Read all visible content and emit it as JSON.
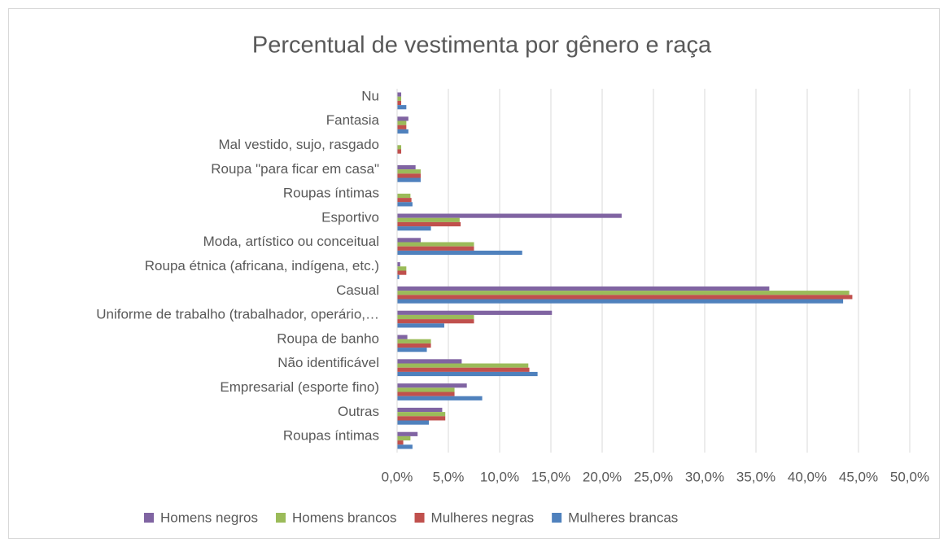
{
  "chart_data": {
    "type": "bar",
    "orientation": "horizontal",
    "title": "Percentual de vestimenta por gênero e raça",
    "categories": [
      "Nu",
      "Fantasia",
      "Mal vestido, sujo, rasgado",
      "Roupa \"para ficar em casa\"",
      "Roupas íntimas",
      "Esportivo",
      "Moda, artístico ou conceitual",
      "Roupa étnica (africana, indígena, etc.)",
      "Casual",
      "Uniforme de trabalho (trabalhador, operário,…",
      "Roupa de banho",
      "Não identificável",
      "Empresarial (esporte fino)",
      "Outras",
      "Roupas íntimas"
    ],
    "series": [
      {
        "name": "Homens negros",
        "color": "#8064a2",
        "values": [
          0.4,
          1.1,
          0,
          1.8,
          0,
          21.9,
          2.3,
          0.3,
          36.3,
          15.1,
          1.0,
          6.3,
          6.8,
          4.4,
          2.0
        ]
      },
      {
        "name": "Homens brancos",
        "color": "#9bbb59",
        "values": [
          0.4,
          0.9,
          0.4,
          2.3,
          1.3,
          6.1,
          7.5,
          0.9,
          44.1,
          7.5,
          3.3,
          12.8,
          5.6,
          4.7,
          1.3
        ]
      },
      {
        "name": "Mulheres negras",
        "color": "#c0504d",
        "values": [
          0.4,
          0.9,
          0.4,
          2.3,
          1.4,
          6.2,
          7.5,
          0.9,
          44.4,
          7.5,
          3.3,
          12.9,
          5.6,
          4.7,
          0.6
        ]
      },
      {
        "name": "Mulheres brancas",
        "color": "#4f81bd",
        "values": [
          0.9,
          1.1,
          0,
          2.3,
          1.5,
          3.3,
          12.2,
          0.2,
          43.5,
          4.6,
          2.9,
          13.7,
          8.3,
          3.1,
          1.5
        ]
      }
    ],
    "xlim": [
      0,
      50
    ],
    "xticks": [
      {
        "value": 0,
        "label": "0,0%"
      },
      {
        "value": 5,
        "label": "5,0%"
      },
      {
        "value": 10,
        "label": "10,0%"
      },
      {
        "value": 15,
        "label": "15,0%"
      },
      {
        "value": 20,
        "label": "20,0%"
      },
      {
        "value": 25,
        "label": "25,0%"
      },
      {
        "value": 30,
        "label": "30,0%"
      },
      {
        "value": 35,
        "label": "35,0%"
      },
      {
        "value": 40,
        "label": "40,0%"
      },
      {
        "value": 45,
        "label": "45,0%"
      },
      {
        "value": 50,
        "label": "50,0%"
      }
    ],
    "grid": true,
    "legend": "bottom"
  }
}
